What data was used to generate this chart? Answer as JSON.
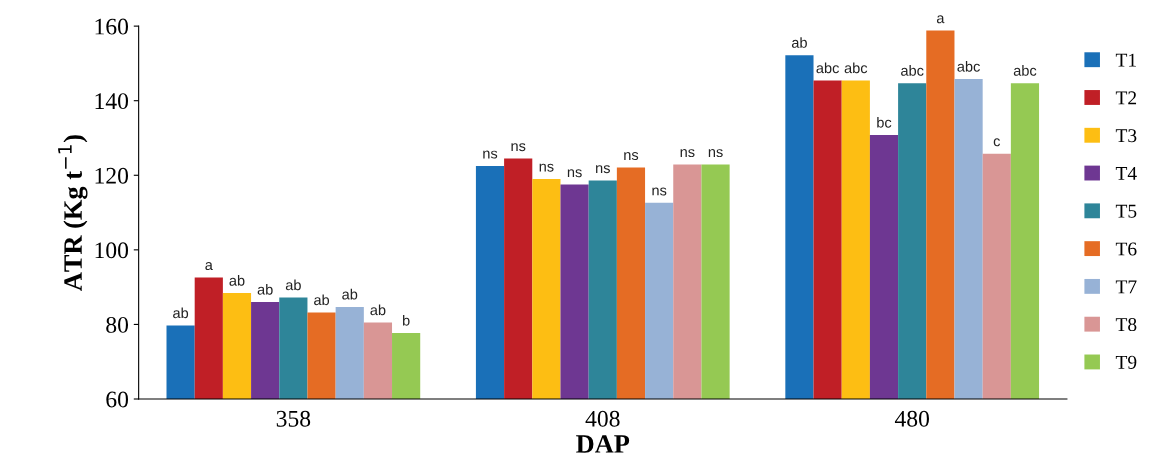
{
  "chart_data": {
    "type": "bar",
    "xlabel": "DAP",
    "ylabel": "ATR (Kg t$^{−1}$)",
    "categories": [
      "358",
      "408",
      "480"
    ],
    "ylim": [
      60,
      160
    ],
    "yticks": [
      60,
      80,
      100,
      120,
      140,
      160
    ],
    "grid": false,
    "legend": "right",
    "series": [
      {
        "name": "T1",
        "color": "#1a70b8",
        "values": [
          79.7,
          122.5,
          152.2
        ],
        "value_labels": [
          "ab",
          "ns",
          "ab"
        ]
      },
      {
        "name": "T2",
        "color": "#c01f26",
        "values": [
          92.6,
          124.5,
          145.4
        ],
        "value_labels": [
          "a",
          "ns",
          "abc"
        ]
      },
      {
        "name": "T3",
        "color": "#fdbe13",
        "values": [
          88.4,
          119.0,
          145.4
        ],
        "value_labels": [
          "ab",
          "ns",
          "abc"
        ]
      },
      {
        "name": "T4",
        "color": "#6e3792",
        "values": [
          86.0,
          117.5,
          130.8
        ],
        "value_labels": [
          "ab",
          "ns",
          "bc"
        ]
      },
      {
        "name": "T5",
        "color": "#2e8599",
        "values": [
          87.2,
          118.6,
          144.7
        ],
        "value_labels": [
          "ab",
          "ns",
          "abc"
        ]
      },
      {
        "name": "T6",
        "color": "#e56c24",
        "values": [
          83.2,
          122.1,
          158.8
        ],
        "value_labels": [
          "ab",
          "ns",
          "a"
        ]
      },
      {
        "name": "T7",
        "color": "#97b2d6",
        "values": [
          84.7,
          112.6,
          145.8
        ],
        "value_labels": [
          "ab",
          "ns",
          "abc"
        ]
      },
      {
        "name": "T8",
        "color": "#d99695",
        "values": [
          80.5,
          122.9,
          125.8
        ],
        "value_labels": [
          "ab",
          "ns",
          "c"
        ]
      },
      {
        "name": "T9",
        "color": "#95c953",
        "values": [
          77.7,
          122.9,
          144.7
        ],
        "value_labels": [
          "b",
          "ns",
          "abc"
        ]
      }
    ]
  }
}
